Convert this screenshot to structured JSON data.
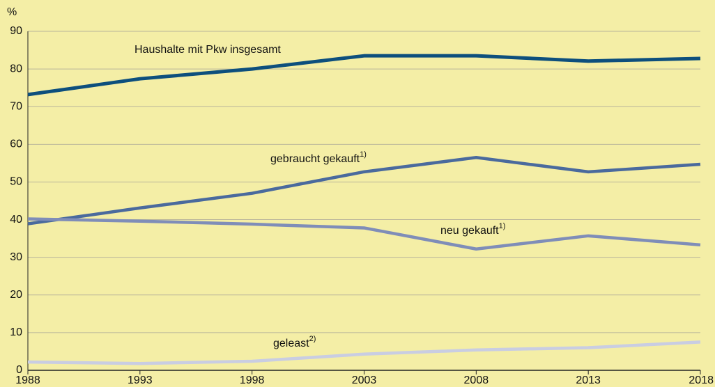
{
  "chart_data": {
    "type": "line",
    "y_axis_label": "%",
    "x": [
      1988,
      1993,
      1998,
      2003,
      2008,
      2013,
      2018
    ],
    "xlim": [
      1988,
      2018
    ],
    "xticks": [
      1988,
      1993,
      1998,
      2003,
      2008,
      2013,
      2018
    ],
    "ylim": [
      0,
      90
    ],
    "yticks": [
      0,
      10,
      20,
      30,
      40,
      50,
      60,
      70,
      80,
      90
    ],
    "grid": true,
    "series": [
      {
        "name": "Haushalte mit Pkw insgesamt",
        "color": "#0d4f7d",
        "values": [
          73.2,
          77.4,
          80.0,
          83.5,
          83.5,
          82.1,
          82.8
        ]
      },
      {
        "name": "gebraucht gekauft",
        "note": "1)",
        "color": "#4a6a9d",
        "values": [
          38.9,
          43.1,
          47.0,
          52.7,
          56.5,
          52.7,
          54.7
        ]
      },
      {
        "name": "neu gekauft",
        "note": "1)",
        "color": "#7f8db8",
        "values": [
          40.2,
          39.6,
          38.8,
          37.8,
          32.2,
          35.7,
          33.3
        ]
      },
      {
        "name": "geleast",
        "note": "2)",
        "color": "#c9cde2",
        "values": [
          2.2,
          1.8,
          2.4,
          4.3,
          5.4,
          6.0,
          7.5
        ]
      }
    ]
  }
}
